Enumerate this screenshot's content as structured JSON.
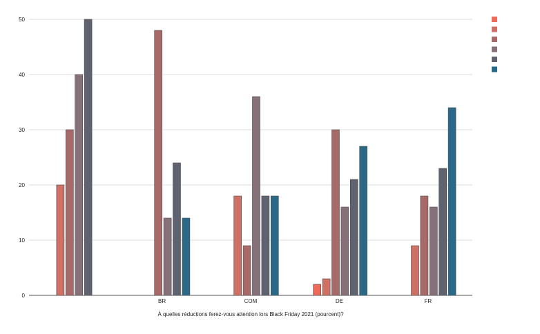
{
  "chart_data": {
    "type": "bar",
    "xlabel": "À quelles réductions ferez-vous attention lors Black Friday 2021 (pourcent)?",
    "ylabel": "",
    "ylim": [
      0,
      50
    ],
    "yticks": [
      0,
      10,
      20,
      30,
      40,
      50
    ],
    "grid": true,
    "legend": "top-right",
    "categories": [
      "",
      "BR",
      "COM",
      "DE",
      "FR"
    ],
    "series": [
      {
        "color": "#ee6b5a",
        "values": [
          null,
          null,
          null,
          2,
          null
        ]
      },
      {
        "color": "#cf7065",
        "values": [
          20,
          null,
          18,
          3,
          9
        ]
      },
      {
        "color": "#a86a68",
        "values": [
          30,
          48,
          9,
          30,
          18
        ]
      },
      {
        "color": "#86717a",
        "values": [
          40,
          14,
          36,
          16,
          16
        ]
      },
      {
        "color": "#5f6370",
        "values": [
          50,
          24,
          18,
          21,
          23
        ]
      },
      {
        "color": "#2a6a88",
        "values": [
          null,
          14,
          18,
          27,
          34
        ]
      }
    ]
  }
}
